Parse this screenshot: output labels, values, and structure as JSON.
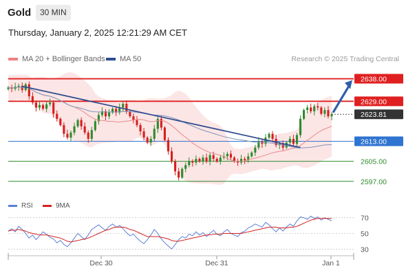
{
  "header": {
    "symbol": "Gold",
    "timeframe": "30 MIN"
  },
  "timestamp": "Thursday, January 2, 2025 12:21:29 AM CET",
  "legend": {
    "bollinger": {
      "label": "MA 20 + Bollinger Bands",
      "color": "#f08080"
    },
    "ma50": {
      "label": "MA 50",
      "color": "#2e4d8f"
    }
  },
  "credit": "Research © 2025 Trading Central",
  "rsi_legend": {
    "rsi": {
      "label": "RSI",
      "color": "#5b7fd6"
    },
    "ma9": {
      "label": "9MA",
      "color": "#d62020"
    }
  },
  "chart_data": [
    {
      "type": "candlestick",
      "title": "Gold 30 MIN",
      "ylim": [
        2592,
        2642
      ],
      "x_ticks": [
        "Dec 30",
        "Dec 31",
        "Jan 1"
      ],
      "levels": [
        {
          "label": "2638.00",
          "value": 2638.0,
          "style": "resistance",
          "color": "#e02020"
        },
        {
          "label": "2629.00",
          "value": 2629.0,
          "style": "resistance",
          "color": "#e02020"
        },
        {
          "label": "2623.81",
          "value": 2623.81,
          "style": "last-price",
          "color": "#333333"
        },
        {
          "label": "2613.00",
          "value": 2613.0,
          "style": "pivot",
          "color": "#2f74d0"
        },
        {
          "label": "2605.00",
          "value": 2605.0,
          "style": "support",
          "color": "#2e8b2e"
        },
        {
          "label": "2597.00",
          "value": 2597.0,
          "style": "support",
          "color": "#2e8b2e"
        }
      ],
      "close_series": [
        2634.5,
        2634.0,
        2634.8,
        2635.2,
        2633.5,
        2635.8,
        2631.0,
        2628.5,
        2626.5,
        2627.5,
        2626.0,
        2627.8,
        2628.5,
        2624.0,
        2622.0,
        2619.5,
        2616.0,
        2614.5,
        2616.5,
        2619.0,
        2621.5,
        2619.0,
        2616.5,
        2614.0,
        2617.5,
        2621.0,
        2623.5,
        2625.0,
        2623.0,
        2624.5,
        2626.0,
        2624.5,
        2626.5,
        2628.0,
        2625.0,
        2623.0,
        2621.5,
        2619.5,
        2617.0,
        2614.5,
        2612.5,
        2614.0,
        2618.0,
        2622.0,
        2618.5,
        2613.5,
        2609.0,
        2605.0,
        2601.0,
        2598.5,
        2602.0,
        2603.5,
        2605.0,
        2604.5,
        2606.0,
        2605.0,
        2606.5,
        2605.0,
        2607.5,
        2606.0,
        2605.0,
        2606.5,
        2607.0,
        2608.0,
        2606.5,
        2605.0,
        2604.5,
        2606.0,
        2605.5,
        2607.0,
        2608.5,
        2610.5,
        2613.0,
        2612.0,
        2614.5,
        2616.0,
        2614.0,
        2611.5,
        2612.0,
        2610.5,
        2612.5,
        2614.0,
        2612.0,
        2615.5,
        2622.0,
        2625.5,
        2626.5,
        2625.0,
        2627.0,
        2626.5,
        2624.0,
        2625.5,
        2623.0,
        2623.81
      ],
      "annotations": [
        "Bollinger band envelope",
        "MA 20",
        "MA 50",
        "Descending trendline",
        "Bullish arrow toward 2638.00"
      ]
    },
    {
      "type": "line",
      "title": "RSI",
      "ylim": [
        25,
        75
      ],
      "y_ticks": [
        70,
        50,
        30
      ],
      "series": [
        {
          "name": "RSI",
          "values": [
            53,
            56,
            52,
            59,
            55,
            50,
            44,
            48,
            42,
            47,
            52,
            49,
            45,
            43,
            38,
            41,
            36,
            33,
            38,
            44,
            50,
            46,
            42,
            48,
            55,
            58,
            61,
            57,
            54,
            59,
            62,
            58,
            60,
            56,
            51,
            47,
            49,
            44,
            40,
            37,
            42,
            48,
            55,
            50,
            43,
            38,
            34,
            30,
            36,
            42,
            46,
            44,
            49,
            47,
            52,
            48,
            51,
            46,
            50,
            54,
            49,
            47,
            52,
            55,
            50,
            48,
            46,
            51,
            53,
            57,
            59,
            62,
            60,
            58,
            64,
            61,
            56,
            52,
            57,
            53,
            58,
            62,
            59,
            66,
            71,
            70,
            68,
            72,
            69,
            71,
            67,
            70,
            68,
            66
          ]
        },
        {
          "name": "9MA",
          "values": [
            53,
            54,
            54,
            55,
            54,
            53,
            51,
            50,
            49,
            48,
            48,
            48,
            47,
            46,
            45,
            44,
            42,
            40,
            39,
            40,
            41,
            42,
            43,
            44,
            46,
            48,
            50,
            52,
            54,
            55,
            57,
            58,
            58,
            58,
            57,
            55,
            54,
            52,
            50,
            48,
            46,
            46,
            46,
            46,
            45,
            44,
            43,
            41,
            40,
            40,
            41,
            42,
            43,
            44,
            45,
            46,
            47,
            48,
            48,
            49,
            49,
            49,
            50,
            50,
            50,
            50,
            50,
            50,
            51,
            52,
            53,
            54,
            55,
            56,
            57,
            58,
            58,
            58,
            57,
            57,
            57,
            58,
            58,
            59,
            61,
            63,
            65,
            67,
            68,
            69,
            69,
            69,
            69,
            69
          ]
        }
      ]
    }
  ]
}
